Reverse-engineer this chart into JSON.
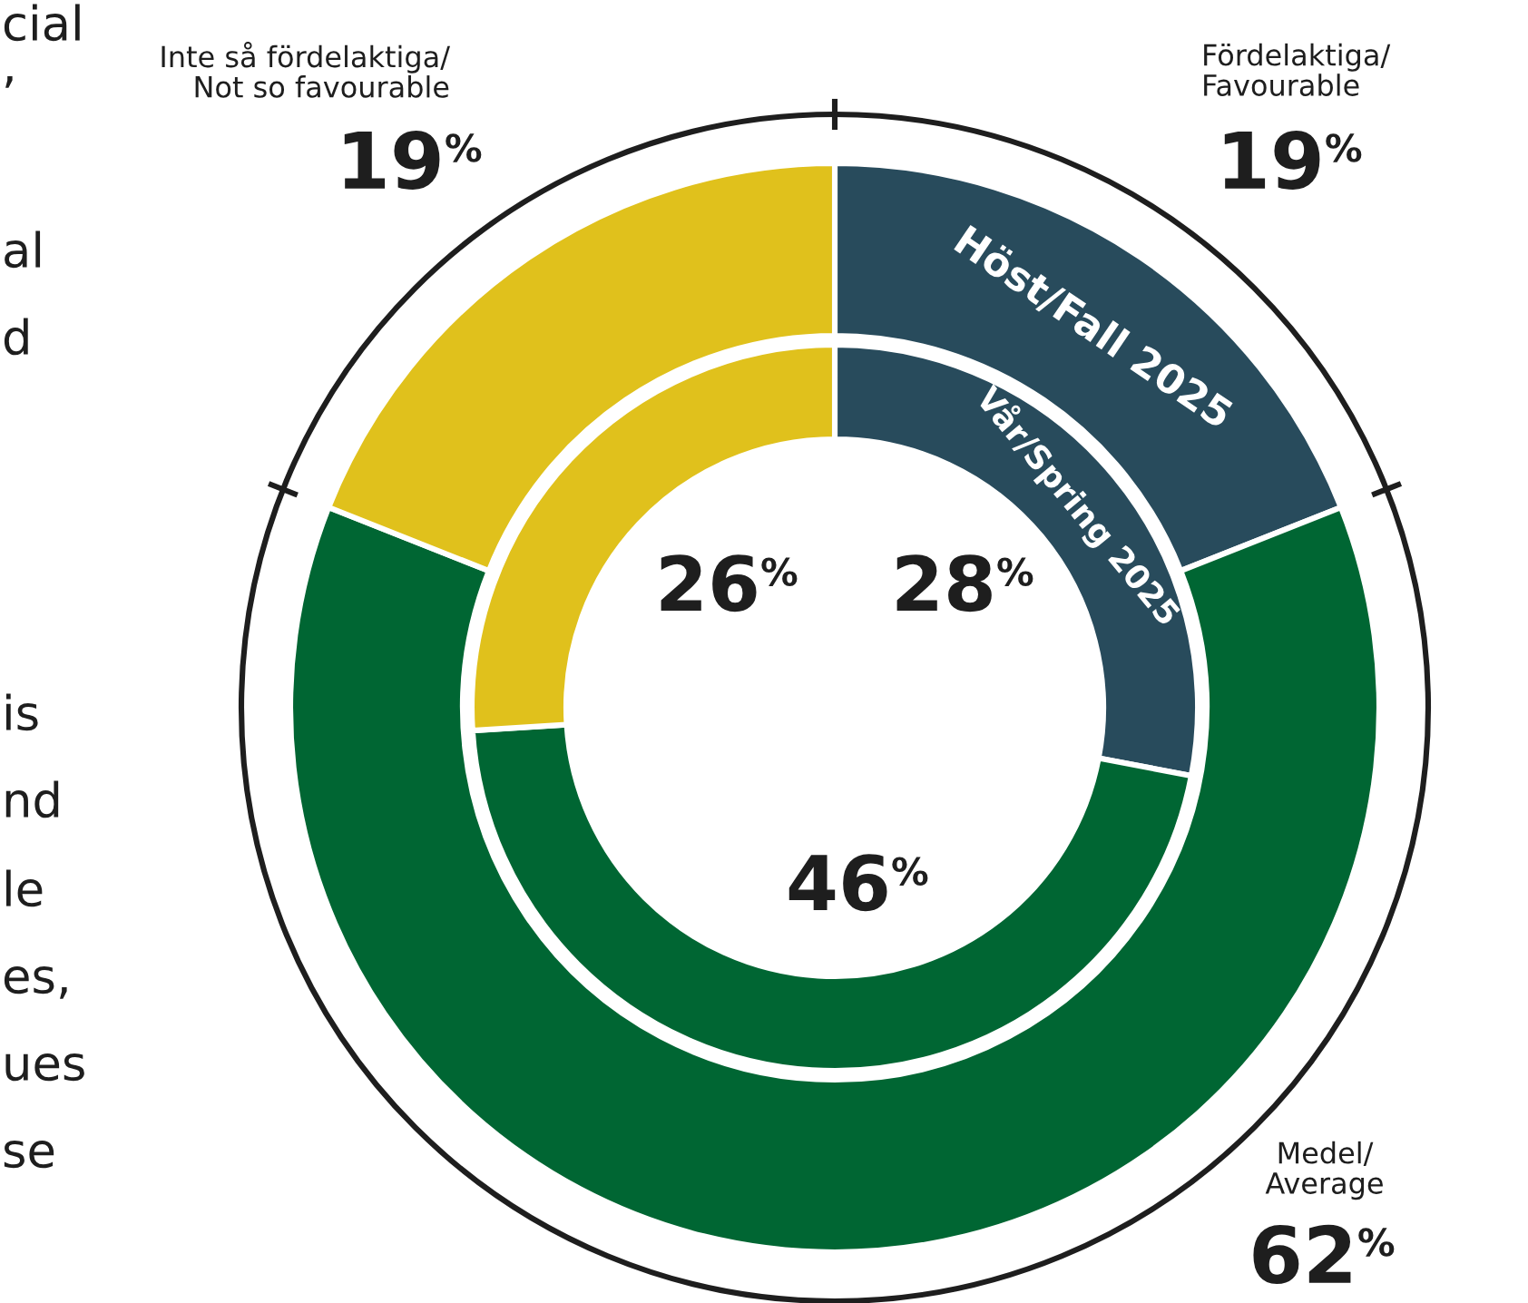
{
  "chart_data": {
    "type": "donut",
    "categories": [
      "Fördelaktiga/\nFavourable",
      "Medel/\nAverage",
      "Inte så fördelaktiga/\nNot so favourable"
    ],
    "colors": [
      "#284b5c",
      "#006633",
      "#e0c11c"
    ],
    "series": [
      {
        "name": "Höst/Fall 2025",
        "values": [
          19,
          62,
          19
        ],
        "value_labels": [
          "19%",
          "62%",
          "19%"
        ]
      },
      {
        "name": "Vår/Spring 2025",
        "values": [
          28,
          46,
          26
        ],
        "value_labels": [
          "28%",
          "46%",
          "26%"
        ]
      }
    ],
    "annotations": [
      "cial",
      ",",
      "al",
      "d",
      "is",
      "nd",
      "le",
      "es,",
      "ues",
      "se"
    ]
  }
}
